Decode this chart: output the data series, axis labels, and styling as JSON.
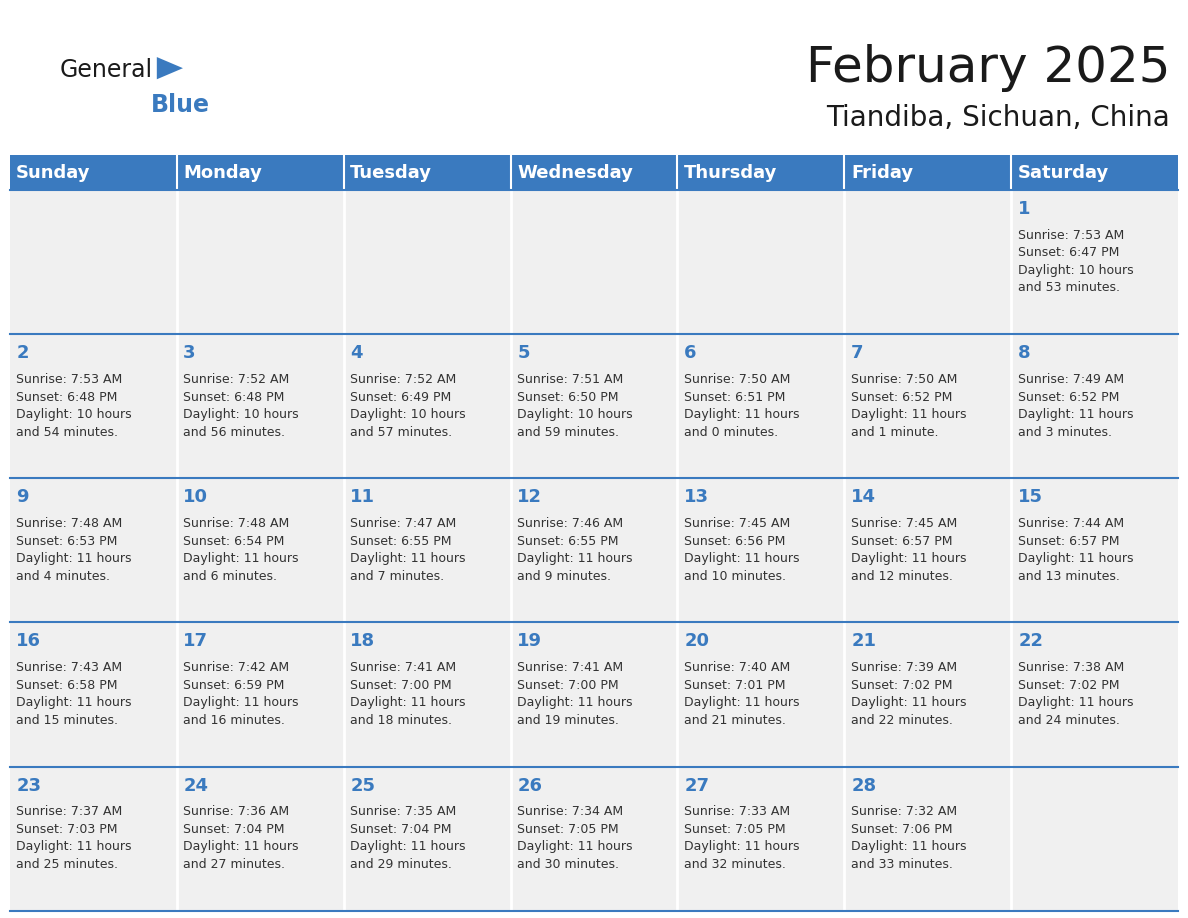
{
  "title": "February 2025",
  "subtitle": "Tiandiba, Sichuan, China",
  "header_color": "#3a7abf",
  "header_text_color": "#ffffff",
  "cell_bg_color": "#f0f0f0",
  "cell_text_color": "#333333",
  "day_num_color": "#3a7abf",
  "border_color": "#3a7abf",
  "separator_color": "#3a7abf",
  "days_of_week": [
    "Sunday",
    "Monday",
    "Tuesday",
    "Wednesday",
    "Thursday",
    "Friday",
    "Saturday"
  ],
  "weeks": [
    [
      {
        "day": "",
        "info": ""
      },
      {
        "day": "",
        "info": ""
      },
      {
        "day": "",
        "info": ""
      },
      {
        "day": "",
        "info": ""
      },
      {
        "day": "",
        "info": ""
      },
      {
        "day": "",
        "info": ""
      },
      {
        "day": "1",
        "info": "Sunrise: 7:53 AM\nSunset: 6:47 PM\nDaylight: 10 hours\nand 53 minutes."
      }
    ],
    [
      {
        "day": "2",
        "info": "Sunrise: 7:53 AM\nSunset: 6:48 PM\nDaylight: 10 hours\nand 54 minutes."
      },
      {
        "day": "3",
        "info": "Sunrise: 7:52 AM\nSunset: 6:48 PM\nDaylight: 10 hours\nand 56 minutes."
      },
      {
        "day": "4",
        "info": "Sunrise: 7:52 AM\nSunset: 6:49 PM\nDaylight: 10 hours\nand 57 minutes."
      },
      {
        "day": "5",
        "info": "Sunrise: 7:51 AM\nSunset: 6:50 PM\nDaylight: 10 hours\nand 59 minutes."
      },
      {
        "day": "6",
        "info": "Sunrise: 7:50 AM\nSunset: 6:51 PM\nDaylight: 11 hours\nand 0 minutes."
      },
      {
        "day": "7",
        "info": "Sunrise: 7:50 AM\nSunset: 6:52 PM\nDaylight: 11 hours\nand 1 minute."
      },
      {
        "day": "8",
        "info": "Sunrise: 7:49 AM\nSunset: 6:52 PM\nDaylight: 11 hours\nand 3 minutes."
      }
    ],
    [
      {
        "day": "9",
        "info": "Sunrise: 7:48 AM\nSunset: 6:53 PM\nDaylight: 11 hours\nand 4 minutes."
      },
      {
        "day": "10",
        "info": "Sunrise: 7:48 AM\nSunset: 6:54 PM\nDaylight: 11 hours\nand 6 minutes."
      },
      {
        "day": "11",
        "info": "Sunrise: 7:47 AM\nSunset: 6:55 PM\nDaylight: 11 hours\nand 7 minutes."
      },
      {
        "day": "12",
        "info": "Sunrise: 7:46 AM\nSunset: 6:55 PM\nDaylight: 11 hours\nand 9 minutes."
      },
      {
        "day": "13",
        "info": "Sunrise: 7:45 AM\nSunset: 6:56 PM\nDaylight: 11 hours\nand 10 minutes."
      },
      {
        "day": "14",
        "info": "Sunrise: 7:45 AM\nSunset: 6:57 PM\nDaylight: 11 hours\nand 12 minutes."
      },
      {
        "day": "15",
        "info": "Sunrise: 7:44 AM\nSunset: 6:57 PM\nDaylight: 11 hours\nand 13 minutes."
      }
    ],
    [
      {
        "day": "16",
        "info": "Sunrise: 7:43 AM\nSunset: 6:58 PM\nDaylight: 11 hours\nand 15 minutes."
      },
      {
        "day": "17",
        "info": "Sunrise: 7:42 AM\nSunset: 6:59 PM\nDaylight: 11 hours\nand 16 minutes."
      },
      {
        "day": "18",
        "info": "Sunrise: 7:41 AM\nSunset: 7:00 PM\nDaylight: 11 hours\nand 18 minutes."
      },
      {
        "day": "19",
        "info": "Sunrise: 7:41 AM\nSunset: 7:00 PM\nDaylight: 11 hours\nand 19 minutes."
      },
      {
        "day": "20",
        "info": "Sunrise: 7:40 AM\nSunset: 7:01 PM\nDaylight: 11 hours\nand 21 minutes."
      },
      {
        "day": "21",
        "info": "Sunrise: 7:39 AM\nSunset: 7:02 PM\nDaylight: 11 hours\nand 22 minutes."
      },
      {
        "day": "22",
        "info": "Sunrise: 7:38 AM\nSunset: 7:02 PM\nDaylight: 11 hours\nand 24 minutes."
      }
    ],
    [
      {
        "day": "23",
        "info": "Sunrise: 7:37 AM\nSunset: 7:03 PM\nDaylight: 11 hours\nand 25 minutes."
      },
      {
        "day": "24",
        "info": "Sunrise: 7:36 AM\nSunset: 7:04 PM\nDaylight: 11 hours\nand 27 minutes."
      },
      {
        "day": "25",
        "info": "Sunrise: 7:35 AM\nSunset: 7:04 PM\nDaylight: 11 hours\nand 29 minutes."
      },
      {
        "day": "26",
        "info": "Sunrise: 7:34 AM\nSunset: 7:05 PM\nDaylight: 11 hours\nand 30 minutes."
      },
      {
        "day": "27",
        "info": "Sunrise: 7:33 AM\nSunset: 7:05 PM\nDaylight: 11 hours\nand 32 minutes."
      },
      {
        "day": "28",
        "info": "Sunrise: 7:32 AM\nSunset: 7:06 PM\nDaylight: 11 hours\nand 33 minutes."
      },
      {
        "day": "",
        "info": ""
      }
    ]
  ],
  "logo_text_general": "General",
  "logo_text_blue": "Blue",
  "logo_color_general": "#1a1a1a",
  "logo_color_blue": "#3a7abf",
  "logo_triangle_color": "#3a7abf",
  "fig_width": 11.88,
  "fig_height": 9.18,
  "title_fontsize": 36,
  "subtitle_fontsize": 20,
  "header_fontsize": 13,
  "day_num_fontsize": 13,
  "cell_text_fontsize": 9
}
